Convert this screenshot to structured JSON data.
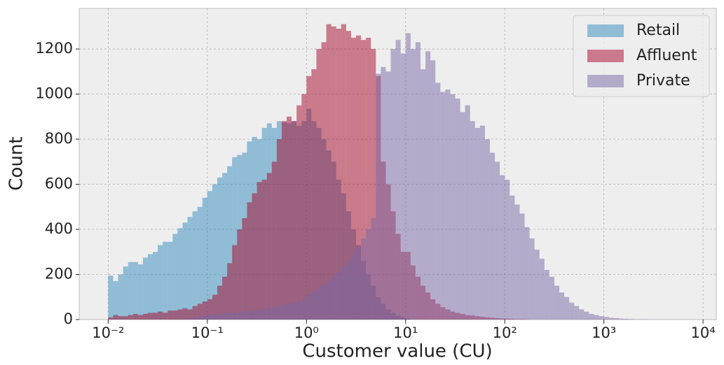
{
  "chart_data": {
    "type": "histogram",
    "xlabel": "Customer value (CU)",
    "ylabel": "Count",
    "xscale": "log",
    "grid": true,
    "legend": "upper right",
    "alpha": 0.5,
    "xlim": [
      0.0051,
      13600
    ],
    "ylim": [
      0,
      1380
    ],
    "xticks": [
      {
        "value": 0.01,
        "label": "10⁻²"
      },
      {
        "value": 0.1,
        "label": "10⁻¹"
      },
      {
        "value": 1,
        "label": "10⁰"
      },
      {
        "value": 10,
        "label": "10¹"
      },
      {
        "value": 100,
        "label": "10²"
      },
      {
        "value": 1000,
        "label": "10³"
      },
      {
        "value": 10000,
        "label": "10⁴"
      }
    ],
    "yticks": [
      0,
      200,
      400,
      600,
      800,
      1000,
      1200
    ],
    "bins": [
      0.01,
      0.01122,
      0.01259,
      0.01413,
      0.01585,
      0.01778,
      0.01995,
      0.02239,
      0.02512,
      0.02818,
      0.03162,
      0.03548,
      0.03981,
      0.04467,
      0.05012,
      0.05623,
      0.0631,
      0.07079,
      0.07943,
      0.08913,
      0.1,
      0.1122,
      0.1259,
      0.1413,
      0.1585,
      0.1778,
      0.1995,
      0.2239,
      0.2512,
      0.2818,
      0.3162,
      0.3548,
      0.3981,
      0.4467,
      0.5012,
      0.5623,
      0.631,
      0.7079,
      0.7943,
      0.8913,
      1,
      1.122,
      1.259,
      1.413,
      1.585,
      1.778,
      1.995,
      2.239,
      2.512,
      2.818,
      3.162,
      3.548,
      3.981,
      4.467,
      5.012,
      5.623,
      6.31,
      7.079,
      7.943,
      8.913,
      10,
      11.22,
      12.59,
      14.13,
      15.85,
      17.78,
      19.95,
      22.39,
      25.12,
      28.18,
      31.62,
      35.48,
      39.81,
      44.67,
      50.12,
      56.23,
      63.1,
      70.79,
      79.43,
      89.13,
      100,
      112.2,
      125.9,
      141.3,
      158.5,
      177.8,
      199.5,
      223.9,
      251.2,
      281.8,
      316.2,
      354.8,
      398.1,
      446.7,
      501.2,
      562.3,
      631,
      707.9,
      794.3,
      891.3,
      1000,
      1122,
      1259,
      1413,
      1585,
      1778,
      1995,
      2239,
      2512,
      2818,
      3162
    ],
    "series": [
      {
        "name": "Retail",
        "color": "#348ABD",
        "values": [
          195,
          170,
          200,
          235,
          255,
          255,
          245,
          275,
          290,
          300,
          330,
          345,
          345,
          380,
          405,
          430,
          455,
          480,
          500,
          540,
          570,
          600,
          630,
          650,
          680,
          720,
          730,
          740,
          790,
          810,
          800,
          850,
          870,
          850,
          880,
          875,
          870,
          880,
          860,
          880,
          935,
          880,
          850,
          800,
          750,
          700,
          620,
          560,
          480,
          400,
          330,
          260,
          200,
          150,
          100,
          70,
          45,
          30,
          18,
          10,
          5,
          0,
          0,
          0,
          0,
          0,
          0,
          0,
          0,
          0,
          0,
          0,
          0,
          0,
          0,
          0,
          0,
          0,
          0,
          0,
          0,
          0,
          0,
          0,
          0,
          0,
          0,
          0,
          0,
          0,
          0,
          0,
          0,
          0,
          0,
          0,
          0,
          0,
          0,
          0,
          0,
          0,
          0,
          0,
          0,
          0,
          0,
          0,
          0,
          0
        ]
      },
      {
        "name": "Affluent",
        "color": "#A60628",
        "values": [
          10,
          20,
          15,
          15,
          20,
          25,
          20,
          25,
          30,
          30,
          35,
          30,
          40,
          40,
          45,
          50,
          45,
          60,
          70,
          80,
          90,
          110,
          150,
          190,
          250,
          330,
          400,
          450,
          520,
          560,
          610,
          620,
          650,
          700,
          800,
          880,
          900,
          880,
          950,
          1000,
          1080,
          1110,
          1200,
          1230,
          1310,
          1300,
          1290,
          1310,
          1280,
          1250,
          1260,
          1240,
          1250,
          1200,
          1080,
          700,
          600,
          480,
          380,
          300,
          300,
          240,
          190,
          150,
          120,
          90,
          70,
          55,
          45,
          35,
          30,
          25,
          20,
          18,
          15,
          12,
          10,
          8,
          6,
          5,
          4,
          3,
          2,
          2,
          1,
          0,
          0,
          0,
          0,
          0,
          0,
          0,
          0,
          0,
          0,
          0,
          0,
          0,
          0,
          0,
          0,
          0,
          0,
          0,
          0,
          0,
          0,
          0,
          0,
          0
        ]
      },
      {
        "name": "Private",
        "color": "#7A68A6",
        "values": [
          0,
          0,
          0,
          0,
          0,
          0,
          0,
          0,
          0,
          0,
          0,
          0,
          0,
          0,
          0,
          0,
          5,
          8,
          12,
          15,
          20,
          22,
          24,
          26,
          28,
          30,
          32,
          35,
          38,
          40,
          42,
          45,
          50,
          55,
          60,
          65,
          70,
          75,
          80,
          90,
          110,
          125,
          140,
          155,
          170,
          190,
          210,
          235,
          260,
          290,
          320,
          360,
          400,
          450,
          1090,
          1120,
          1100,
          1200,
          1240,
          1180,
          1270,
          1200,
          1230,
          1110,
          1190,
          1150,
          1050,
          1010,
          1020,
          1000,
          980,
          920,
          950,
          880,
          850,
          860,
          800,
          740,
          700,
          640,
          620,
          550,
          510,
          470,
          410,
          360,
          310,
          270,
          220,
          190,
          150,
          120,
          100,
          75,
          60,
          45,
          35,
          25,
          20,
          15,
          12,
          8,
          6,
          4,
          3,
          2,
          1,
          1,
          1,
          0
        ]
      }
    ]
  }
}
